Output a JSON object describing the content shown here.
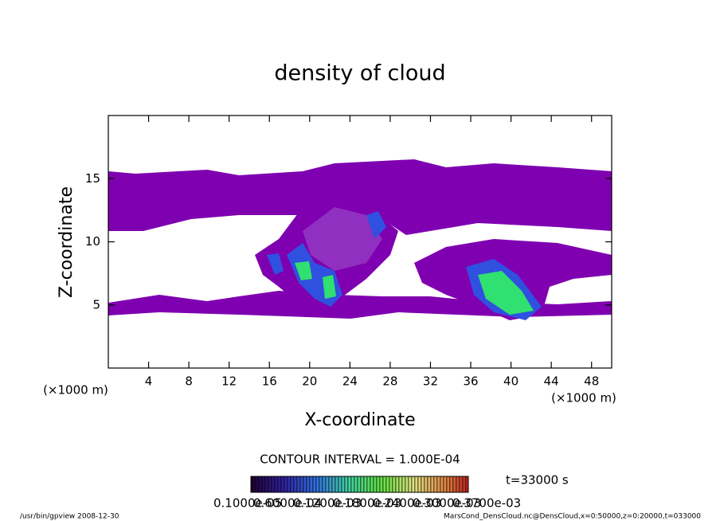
{
  "chart_data": {
    "type": "contour",
    "title": "density of cloud",
    "x_label": "X-coordinate",
    "y_label": "Z-coordinate",
    "x_unit": "(×1000 m)",
    "y_unit": "(×1000 m)",
    "xlim": [
      0,
      50
    ],
    "ylim": [
      0,
      20
    ],
    "xticks": [
      4,
      8,
      12,
      16,
      20,
      24,
      28,
      32,
      36,
      40,
      44,
      48
    ],
    "yticks": [
      5,
      10,
      15
    ],
    "contour_interval": "CONTOUR INTERVAL = 1.000E-04",
    "time": "t=33000 s",
    "colorbar_labels": [
      "0.1000e-05",
      "0.6000e-04",
      "0.1200e-03",
      "0.1800e-03",
      "0.2400e-03",
      "0.3000e-03",
      "0.3700e-03"
    ],
    "footer_left": "/usr/bin/gpview  2008-12-30",
    "footer_right": "MarsCond_DensCloud.nc@DensCloud,x=0:50000,z=0:20000,t=033000"
  }
}
